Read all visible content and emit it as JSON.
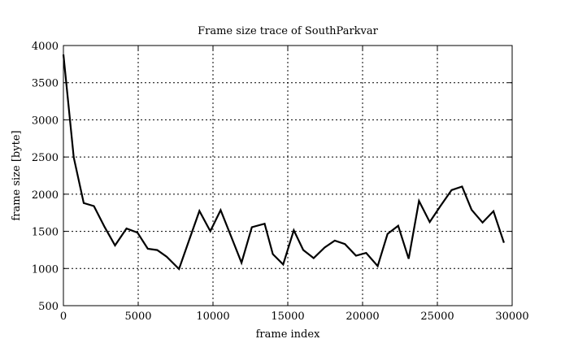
{
  "chart_data": {
    "type": "line",
    "title": "Frame size trace of SouthParkvar",
    "xlabel": "frame index",
    "ylabel": "frame size [byte]",
    "xlim": [
      0,
      30000
    ],
    "ylim": [
      500,
      4000
    ],
    "xticks": [
      0,
      5000,
      10000,
      15000,
      20000,
      25000,
      30000
    ],
    "yticks": [
      500,
      1000,
      1500,
      2000,
      2500,
      3000,
      3500,
      4000
    ],
    "grid": true,
    "series": [
      {
        "name": "SouthParkvar",
        "color": "#000000",
        "x": [
          0,
          690,
          1360,
          2040,
          2750,
          3450,
          4220,
          4950,
          5640,
          6270,
          6910,
          7730,
          8400,
          9090,
          9820,
          10510,
          11180,
          11910,
          12600,
          13450,
          14000,
          14690,
          15400,
          16030,
          16730,
          17460,
          18140,
          18820,
          19560,
          20240,
          21010,
          21670,
          22380,
          23080,
          23770,
          24490,
          25220,
          25950,
          26650,
          27290,
          28020,
          28750,
          29450
        ],
        "y": [
          3880,
          2495,
          1880,
          1840,
          1560,
          1310,
          1538,
          1483,
          1266,
          1248,
          1157,
          993,
          1380,
          1774,
          1502,
          1785,
          1447,
          1077,
          1556,
          1603,
          1193,
          1055,
          1515,
          1249,
          1140,
          1282,
          1375,
          1329,
          1173,
          1210,
          1033,
          1465,
          1575,
          1131,
          1909,
          1625,
          1844,
          2055,
          2102,
          1789,
          1618,
          1771,
          1347
        ]
      }
    ]
  }
}
